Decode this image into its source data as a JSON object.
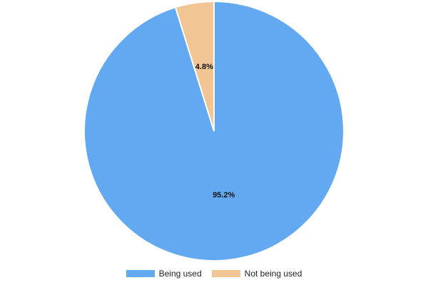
{
  "chart_data": {
    "type": "pie",
    "slices": [
      {
        "name": "Being used",
        "value": 95.2,
        "label": "95.2%",
        "color": "#62a9f2"
      },
      {
        "name": "Not being used",
        "value": 4.8,
        "label": "4.8%",
        "color": "#f2c595"
      }
    ],
    "legend_position": "bottom",
    "start_angle": "top, clockwise",
    "border_color": "#ffffff"
  }
}
